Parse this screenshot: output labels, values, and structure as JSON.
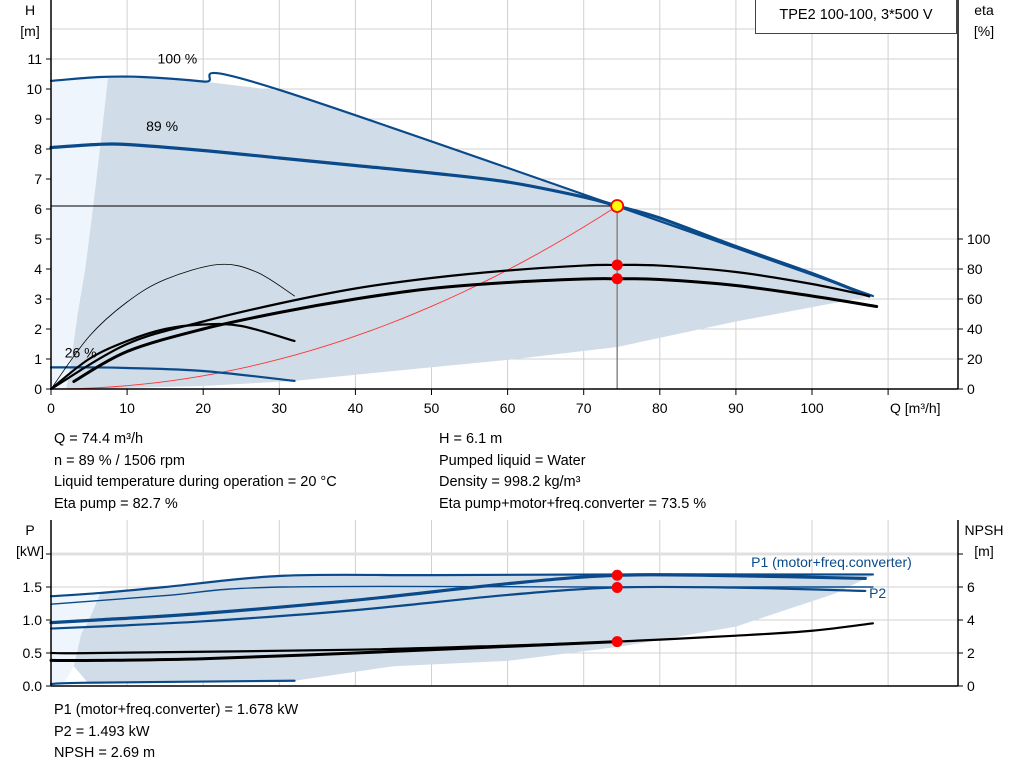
{
  "title": "TPE2 100-100, 3*500 V",
  "colors": {
    "curve_blue": "#0a4a8a",
    "shade_dark": "#d0dce7",
    "shade_light": "#eef5fd",
    "grid": "#d0d0d0",
    "duty_point": "#ffff00",
    "marker_red": "#ff0000",
    "system_curve": "#ff3333"
  },
  "info_top_left": [
    "Q = 74.4 m³/h",
    "n = 89 % / 1506 rpm",
    "Liquid temperature during operation = 20 °C",
    "Eta pump = 82.7 %"
  ],
  "info_top_right": [
    "H = 6.1 m",
    "Pumped liquid = Water",
    "Density = 998.2 kg/m³",
    "Eta pump+motor+freq.converter = 73.5 %"
  ],
  "info_bottom": [
    "P1 (motor+freq.converter) = 1.678 kW",
    "P2 = 1.493 kW",
    "NPSH = 2.69 m"
  ],
  "chart_data": [
    {
      "type": "line",
      "xlabel": "Q [m³/h]",
      "ylabel": [
        "H",
        "[m]"
      ],
      "y2label": [
        "eta",
        "[%]"
      ],
      "xlim": [
        0,
        119
      ],
      "ylim": [
        0,
        12.9
      ],
      "y2lim": [
        0,
        258
      ],
      "xticks": [
        0,
        10,
        20,
        30,
        40,
        50,
        60,
        70,
        80,
        90,
        100
      ],
      "yticks": [
        0,
        1,
        2,
        3,
        4,
        5,
        6,
        7,
        8,
        9,
        10,
        11
      ],
      "y2ticks": [
        0,
        20,
        40,
        60,
        80,
        100
      ],
      "grid": true,
      "curve_labels": [
        {
          "text": "100 %",
          "q": 14,
          "h": 10.85
        },
        {
          "text": "89 %",
          "q": 12.5,
          "h": 8.6
        },
        {
          "text": "26 %",
          "q": 1.8,
          "h": 1.05
        }
      ],
      "duty_point": {
        "q": 74.4,
        "h": 6.1,
        "eta_pump": 82.7,
        "eta_total": 73.5
      },
      "shaded_region": [
        [
          7.5,
          10.4
        ],
        [
          12,
          10.4
        ],
        [
          20,
          10.25
        ],
        [
          30.5,
          9.93
        ],
        [
          108,
          3.1
        ],
        [
          103,
          2.87
        ],
        [
          90,
          2.25
        ],
        [
          74.4,
          1.4
        ],
        [
          60,
          0.97
        ],
        [
          45,
          0.6
        ],
        [
          32,
          0.27
        ],
        [
          20,
          0.1
        ],
        [
          8,
          0.02
        ],
        [
          2,
          0
        ],
        [
          2.7,
          1
        ],
        [
          3.5,
          2.5
        ],
        [
          4.5,
          4
        ],
        [
          5.5,
          6
        ],
        [
          6.5,
          8.15
        ],
        [
          7.5,
          10.4
        ]
      ],
      "light_region": [
        [
          0,
          0
        ],
        [
          0,
          10.27
        ],
        [
          7.5,
          10.4
        ],
        [
          6.5,
          8.15
        ],
        [
          5.5,
          6
        ],
        [
          4.5,
          4
        ],
        [
          3.5,
          2.5
        ],
        [
          2.7,
          1
        ],
        [
          2,
          0
        ]
      ],
      "series": [
        {
          "axis": "H",
          "style": "blue",
          "points": [
            [
              0,
              10.27
            ],
            [
              6.5,
              10.4
            ],
            [
              12,
              10.4
            ],
            [
              20,
              10.25
            ],
            [
              30.5,
              9.93
            ],
            [
              108,
              3.1
            ]
          ]
        },
        {
          "axis": "H",
          "style": "blue-thick",
          "points": [
            [
              0,
              8.05
            ],
            [
              6,
              8.15
            ],
            [
              10,
              8.15
            ],
            [
              20,
              7.95
            ],
            [
              30,
              7.7
            ],
            [
              40,
              7.45
            ],
            [
              50,
              7.2
            ],
            [
              60,
              6.9
            ],
            [
              70,
              6.4
            ],
            [
              74.4,
              6.1
            ],
            [
              80,
              5.7
            ],
            [
              90,
              4.75
            ],
            [
              100,
              3.85
            ],
            [
              107.5,
              3.1
            ]
          ]
        },
        {
          "axis": "H",
          "style": "blue",
          "points": [
            [
              0,
              0.72
            ],
            [
              5,
              0.72
            ],
            [
              10,
              0.7
            ],
            [
              20,
              0.6
            ],
            [
              32,
              0.27
            ]
          ]
        },
        {
          "axis": "eta",
          "style": "black-thin",
          "points": [
            [
              0,
              0
            ],
            [
              5,
              35
            ],
            [
              10,
              58
            ],
            [
              15,
              73
            ],
            [
              22,
              83
            ],
            [
              27,
              78
            ],
            [
              32,
              62
            ]
          ]
        },
        {
          "axis": "eta",
          "style": "black",
          "points": [
            [
              0,
              0
            ],
            [
              5,
              20
            ],
            [
              10,
              32
            ],
            [
              15,
              40
            ],
            [
              20,
              43
            ],
            [
              25,
              42
            ],
            [
              32,
              32
            ]
          ]
        },
        {
          "axis": "eta",
          "style": "black",
          "points": [
            [
              0,
              0
            ],
            [
              10,
              30
            ],
            [
              20,
              45
            ],
            [
              30,
              57
            ],
            [
              40,
              67
            ],
            [
              50,
              74
            ],
            [
              60,
              79
            ],
            [
              70,
              82.3
            ],
            [
              74.4,
              82.7
            ],
            [
              80,
              82.3
            ],
            [
              90,
              78
            ],
            [
              100,
              70
            ],
            [
              107.5,
              62
            ]
          ]
        },
        {
          "axis": "eta",
          "style": "black-thick",
          "points": [
            [
              3,
              5
            ],
            [
              10,
              25
            ],
            [
              20,
              40
            ],
            [
              30,
              51
            ],
            [
              40,
              60
            ],
            [
              50,
              67
            ],
            [
              60,
              71
            ],
            [
              70,
              73.3
            ],
            [
              74.4,
              73.5
            ],
            [
              80,
              73
            ],
            [
              90,
              69
            ],
            [
              100,
              62
            ],
            [
              108.5,
              55
            ]
          ]
        }
      ]
    },
    {
      "type": "line",
      "ylabel": [
        "P",
        "[kW]"
      ],
      "y2label": [
        "NPSH",
        "[m]"
      ],
      "xlim": [
        0,
        119
      ],
      "ylim": [
        0,
        2.5
      ],
      "y2lim": [
        0,
        10
      ],
      "yticks": [
        "0.0",
        "0.5",
        "1.0",
        "1.5"
      ],
      "y2ticks": [
        0,
        2,
        4,
        6
      ],
      "grid": true,
      "series_labels": [
        {
          "text": "P1 (motor+freq.converter)",
          "q": 92,
          "p": 1.8
        },
        {
          "text": "P2",
          "q": 107.5,
          "p": 1.33
        }
      ],
      "duty_point": {
        "q": 74.4,
        "p1": 1.678,
        "p2": 1.493,
        "npsh": 2.69
      },
      "shaded_region": [
        [
          6.5,
          1.41
        ],
        [
          15,
          1.5
        ],
        [
          30.5,
          1.67
        ],
        [
          74.4,
          1.69
        ],
        [
          108,
          1.68
        ],
        [
          103,
          1.4
        ],
        [
          90,
          0.9
        ],
        [
          75,
          0.6
        ],
        [
          60,
          0.38
        ],
        [
          45,
          0.3
        ],
        [
          32,
          0.08
        ],
        [
          5,
          0.03
        ],
        [
          3,
          0.3
        ],
        [
          4,
          0.8
        ],
        [
          5,
          1.0
        ],
        [
          6.5,
          1.41
        ]
      ],
      "light_region": [
        [
          0,
          0
        ],
        [
          0,
          1.36
        ],
        [
          6.5,
          1.41
        ],
        [
          5,
          1.0
        ],
        [
          4,
          0.8
        ],
        [
          3,
          0.3
        ],
        [
          1.5,
          0
        ]
      ],
      "series": [
        {
          "name": "P1 (motor+freq.converter)",
          "axis": "P",
          "style": "blue",
          "points": [
            [
              0,
              1.36
            ],
            [
              6.5,
              1.41
            ],
            [
              15,
              1.5
            ],
            [
              30.5,
              1.67
            ],
            [
              50,
              1.68
            ],
            [
              74.4,
              1.69
            ],
            [
              100,
              1.69
            ],
            [
              108,
              1.69
            ]
          ]
        },
        {
          "name": "P2",
          "axis": "P",
          "style": "blue-thin",
          "points": [
            [
              0,
              1.24
            ],
            [
              15,
              1.37
            ],
            [
              30.5,
              1.5
            ],
            [
              74.4,
              1.5
            ],
            [
              108,
              1.5
            ]
          ]
        },
        {
          "axis": "P",
          "style": "blue-thick",
          "points": [
            [
              0,
              0.96
            ],
            [
              6,
              1.0
            ],
            [
              20,
              1.1
            ],
            [
              40,
              1.3
            ],
            [
              60,
              1.55
            ],
            [
              74.4,
              1.678
            ],
            [
              90,
              1.67
            ],
            [
              107,
              1.63
            ]
          ]
        },
        {
          "axis": "P",
          "style": "blue",
          "points": [
            [
              0,
              0.87
            ],
            [
              6,
              0.9
            ],
            [
              20,
              0.98
            ],
            [
              40,
              1.15
            ],
            [
              60,
              1.38
            ],
            [
              74.4,
              1.493
            ],
            [
              90,
              1.49
            ],
            [
              107,
              1.44
            ]
          ]
        },
        {
          "axis": "P",
          "style": "blue",
          "points": [
            [
              0,
              0.03
            ],
            [
              5,
              0.05
            ],
            [
              32,
              0.08
            ]
          ]
        },
        {
          "axis": "NPSH",
          "style": "black",
          "points": [
            [
              0,
              2.0
            ],
            [
              6,
              2.0
            ],
            [
              40,
              2.2
            ],
            [
              60,
              2.45
            ],
            [
              74.4,
              2.69
            ],
            [
              90,
              3.05
            ],
            [
              100,
              3.35
            ],
            [
              108,
              3.8
            ]
          ]
        },
        {
          "axis": "NPSH",
          "style": "black-thick",
          "points": [
            [
              0,
              1.55
            ],
            [
              6,
              1.55
            ],
            [
              20,
              1.65
            ],
            [
              40,
              2.0
            ],
            [
              60,
              2.4
            ],
            [
              74.4,
              2.69
            ]
          ]
        }
      ]
    }
  ]
}
